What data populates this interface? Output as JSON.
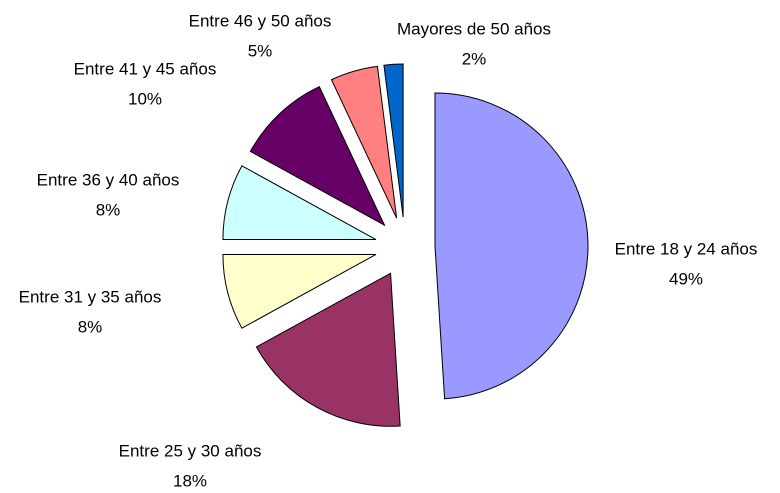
{
  "chart_data": {
    "type": "pie",
    "categories": [
      "Entre 18 y 24 años",
      "Entre 25 y 30 años",
      "Entre 31 y 35 años",
      "Entre 36 y 40 años",
      "Entre 41 y 45 años",
      "Entre 46 y 50 años",
      "Mayores de 50 años"
    ],
    "values": [
      49,
      18,
      8,
      8,
      10,
      5,
      2
    ],
    "value_labels": [
      "49%",
      "18%",
      "8%",
      "8%",
      "10%",
      "5%",
      "2%"
    ],
    "colors": [
      "#9999ff",
      "#993366",
      "#ffffcc",
      "#ccffff",
      "#660066",
      "#ff8080",
      "#0066cc"
    ]
  }
}
